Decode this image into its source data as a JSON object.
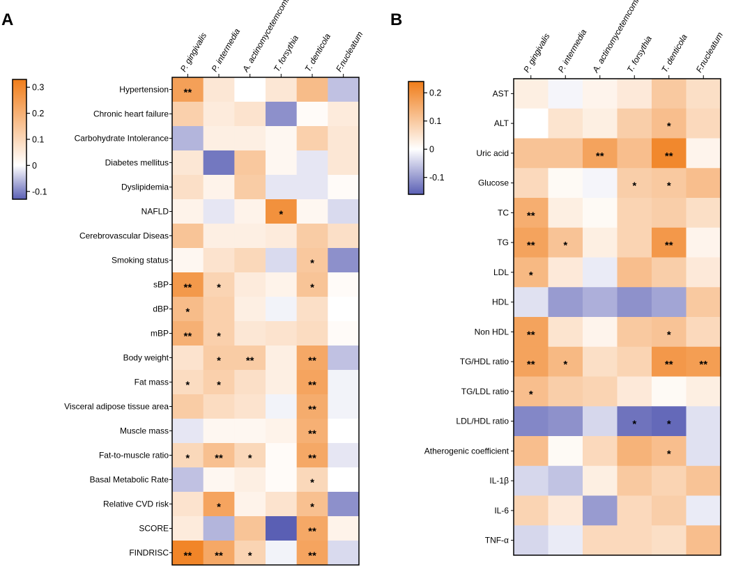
{
  "chart_data": [
    {
      "type": "heatmap",
      "panel_label": "A",
      "columns": [
        "P. gingivalis",
        "P. intermedia",
        "A. actinomycetemcomitans",
        "T. forsythia",
        "T. denticola",
        "F.nucleatum"
      ],
      "rows": [
        "Hypertension",
        "Chronic heart failure",
        "Carbohydrate Intolerance",
        "Diabetes mellitus",
        "Dyslipidemia",
        "NAFLD",
        "Cerebrovascular Diseas",
        "Smoking status",
        "sBP",
        "dBP",
        "mBP",
        "Body weight",
        "Fat mass",
        "Visceral adipose tissue area",
        "Muscle mass",
        "Fat-to-muscle ratio",
        "Basal Metabolic Rate",
        "Relative CVD risk",
        "SCORE",
        "FINDRISC"
      ],
      "values": [
        [
          0.24,
          0.06,
          0.0,
          0.06,
          0.17,
          -0.05
        ],
        [
          0.12,
          0.05,
          0.07,
          -0.09,
          0.01,
          0.05
        ],
        [
          -0.06,
          0.04,
          0.04,
          0.02,
          0.12,
          0.06
        ],
        [
          0.06,
          -0.11,
          0.14,
          0.02,
          -0.02,
          0.06
        ],
        [
          0.08,
          0.03,
          0.13,
          -0.02,
          -0.02,
          0.01
        ],
        [
          0.03,
          -0.02,
          0.03,
          0.28,
          0.02,
          -0.03
        ],
        [
          0.15,
          0.04,
          0.04,
          0.05,
          0.13,
          0.08
        ],
        [
          0.02,
          0.07,
          0.1,
          -0.03,
          0.14,
          -0.09
        ],
        [
          0.26,
          0.11,
          0.05,
          0.03,
          0.15,
          0.01
        ],
        [
          0.17,
          0.12,
          0.04,
          -0.01,
          0.08,
          0.0
        ],
        [
          0.2,
          0.12,
          0.06,
          0.07,
          0.09,
          0.01
        ],
        [
          0.07,
          0.13,
          0.13,
          0.04,
          0.22,
          -0.05
        ],
        [
          0.09,
          0.12,
          0.08,
          0.04,
          0.23,
          -0.01
        ],
        [
          0.13,
          0.09,
          0.07,
          -0.01,
          0.21,
          -0.01
        ],
        [
          -0.02,
          0.02,
          0.02,
          0.03,
          0.2,
          0.0
        ],
        [
          0.1,
          0.16,
          0.1,
          0.01,
          0.22,
          -0.02
        ],
        [
          -0.05,
          0.02,
          0.04,
          0.01,
          0.1,
          0.0
        ],
        [
          0.07,
          0.23,
          0.03,
          0.07,
          0.16,
          -0.09
        ],
        [
          0.05,
          -0.06,
          0.15,
          -0.13,
          0.22,
          0.03
        ],
        [
          0.31,
          0.22,
          0.11,
          -0.01,
          0.23,
          -0.03
        ]
      ],
      "significance": [
        [
          "**",
          "",
          "",
          "",
          "",
          ""
        ],
        [
          "",
          "",
          "",
          "",
          "",
          ""
        ],
        [
          "",
          "",
          "",
          "",
          "",
          ""
        ],
        [
          "",
          "",
          "",
          "",
          "",
          ""
        ],
        [
          "",
          "",
          "",
          "",
          "",
          ""
        ],
        [
          "",
          "",
          "",
          "*",
          "",
          ""
        ],
        [
          "",
          "",
          "",
          "",
          "",
          ""
        ],
        [
          "",
          "",
          "",
          "",
          "*",
          ""
        ],
        [
          "**",
          "*",
          "",
          "",
          "*",
          ""
        ],
        [
          "*",
          "",
          "",
          "",
          "",
          ""
        ],
        [
          "**",
          "*",
          "",
          "",
          "",
          ""
        ],
        [
          "",
          "*",
          "**",
          "",
          "**",
          ""
        ],
        [
          "*",
          "*",
          "",
          "",
          "**",
          ""
        ],
        [
          "",
          "",
          "",
          "",
          "**",
          ""
        ],
        [
          "",
          "",
          "",
          "",
          "**",
          ""
        ],
        [
          "*",
          "**",
          "*",
          "",
          "**",
          ""
        ],
        [
          "",
          "",
          "",
          "",
          "*",
          ""
        ],
        [
          "",
          "*",
          "",
          "",
          "*",
          ""
        ],
        [
          "",
          "",
          "",
          "",
          "**",
          ""
        ],
        [
          "**",
          "**",
          "*",
          "",
          "**",
          ""
        ]
      ],
      "colorbar": {
        "min": -0.13,
        "max": 0.33,
        "ticks": [
          0.3,
          0.2,
          0.1,
          0,
          -0.1
        ],
        "tick_labels": [
          "0.3",
          "0.2",
          "0.1",
          "0",
          "-0.1"
        ]
      }
    },
    {
      "type": "heatmap",
      "panel_label": "B",
      "columns": [
        "P. gingivalis",
        "P. intermedia",
        "A. actinomycetemcomitans",
        "T. forsythia",
        "T. denticola",
        "F.nucleatum"
      ],
      "rows": [
        "AST",
        "ALT",
        "Uric acid",
        "Glucose",
        "TC",
        "TG",
        "LDL",
        "HDL",
        "Non HDL",
        "TG/HDL ratio",
        "TG/LDL ratio",
        "LDL/HDL ratio",
        "Atherogenic coefficient",
        "IL-1β",
        "IL-6",
        "TNF-α"
      ],
      "values": [
        [
          0.03,
          -0.01,
          0.02,
          0.04,
          0.1,
          0.06
        ],
        [
          0.0,
          0.05,
          0.03,
          0.09,
          0.12,
          0.07
        ],
        [
          0.11,
          0.11,
          0.17,
          0.12,
          0.22,
          0.02
        ],
        [
          0.07,
          0.01,
          -0.01,
          0.09,
          0.1,
          0.12
        ],
        [
          0.15,
          0.03,
          0.01,
          0.08,
          0.09,
          0.06
        ],
        [
          0.17,
          0.11,
          0.03,
          0.08,
          0.19,
          0.02
        ],
        [
          0.13,
          0.04,
          -0.02,
          0.12,
          0.09,
          0.04
        ],
        [
          -0.03,
          -0.1,
          -0.08,
          -0.11,
          -0.09,
          0.1
        ],
        [
          0.17,
          0.05,
          0.02,
          0.1,
          0.11,
          0.07
        ],
        [
          0.17,
          0.13,
          0.06,
          0.08,
          0.19,
          0.18
        ],
        [
          0.12,
          0.09,
          0.08,
          0.04,
          0.01,
          0.03
        ],
        [
          -0.12,
          -0.11,
          -0.04,
          -0.14,
          -0.15,
          -0.03
        ],
        [
          0.12,
          0.01,
          0.07,
          0.14,
          0.12,
          -0.03
        ],
        [
          -0.04,
          -0.06,
          0.03,
          0.1,
          0.08,
          0.11
        ],
        [
          0.08,
          0.04,
          -0.1,
          0.07,
          0.09,
          -0.02
        ],
        [
          -0.04,
          -0.02,
          0.07,
          0.07,
          0.06,
          0.12
        ]
      ],
      "significance": [
        [
          "",
          "",
          "",
          "",
          "",
          ""
        ],
        [
          "",
          "",
          "",
          "",
          "*",
          ""
        ],
        [
          "",
          "",
          "**",
          "",
          "**",
          ""
        ],
        [
          "",
          "",
          "",
          "*",
          "*",
          ""
        ],
        [
          "**",
          "",
          "",
          "",
          "",
          ""
        ],
        [
          "**",
          "*",
          "",
          "",
          "**",
          ""
        ],
        [
          "*",
          "",
          "",
          "",
          "",
          ""
        ],
        [
          "",
          "",
          "",
          "",
          "",
          ""
        ],
        [
          "**",
          "",
          "",
          "",
          "*",
          ""
        ],
        [
          "**",
          "*",
          "",
          "",
          "**",
          "**"
        ],
        [
          "*",
          "",
          "",
          "",
          "",
          ""
        ],
        [
          "",
          "",
          "",
          "*",
          "*",
          ""
        ],
        [
          "",
          "",
          "",
          "",
          "*",
          ""
        ],
        [
          "",
          "",
          "",
          "",
          "",
          ""
        ],
        [
          "",
          "",
          "",
          "",
          "",
          ""
        ],
        [
          "",
          "",
          "",
          "",
          "",
          ""
        ]
      ],
      "colorbar": {
        "min": -0.16,
        "max": 0.24,
        "ticks": [
          0.2,
          0.1,
          0,
          -0.1
        ],
        "tick_labels": [
          "0.2",
          "0.1",
          "0",
          "-0.1"
        ]
      }
    }
  ]
}
